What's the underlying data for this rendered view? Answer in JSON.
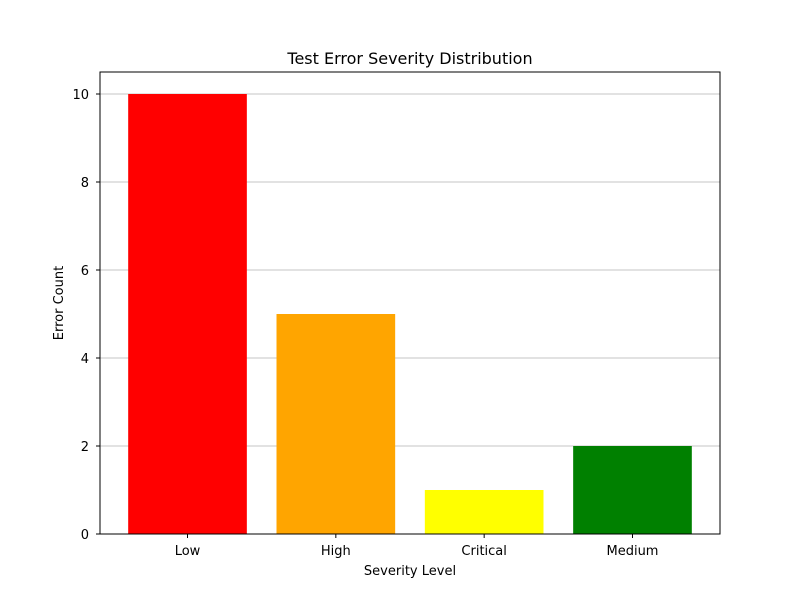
{
  "chart_data": {
    "type": "bar",
    "title": "Test Error Severity Distribution",
    "xlabel": "Severity Level",
    "ylabel": "Error Count",
    "categories": [
      "Low",
      "High",
      "Critical",
      "Medium"
    ],
    "values": [
      10,
      5,
      1,
      2
    ],
    "colors": [
      "#ff0000",
      "#ffa500",
      "#ffff00",
      "#008000"
    ],
    "ylim": [
      0,
      10.5
    ],
    "yticks": [
      0,
      2,
      4,
      6,
      8,
      10
    ],
    "grid": "y-axis",
    "legend": "none"
  }
}
